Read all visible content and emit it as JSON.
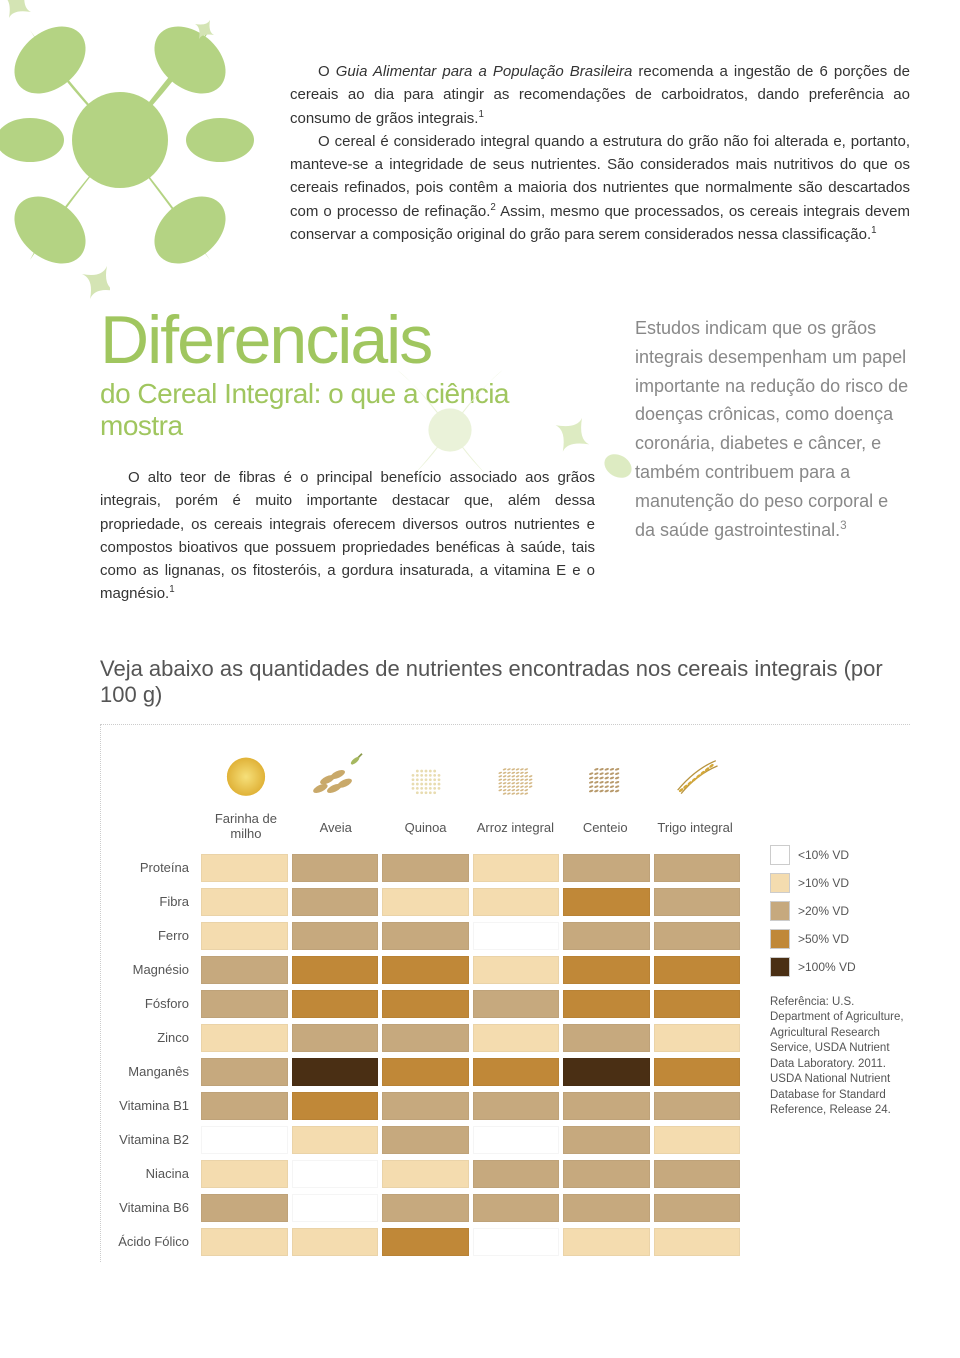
{
  "intro": {
    "para1_prefix": "O ",
    "para1_italic": "Guia Alimentar para a População Brasileira",
    "para1_rest": " recomenda a ingestão de 6 porções de cereais ao dia para atingir as recomendações de carboidratos, dando preferência ao consumo de grãos integrais.",
    "para1_sup": "1",
    "para2": "O cereal é considerado integral quando a estrutura do grão não foi alterada e, portanto, manteve-se a integridade de seus nutrientes. São considerados mais nutritivos do que os cereais refinados, pois contêm a maioria dos nutrientes que normalmente são descartados com o processo de refinação.",
    "para2_sup": "2",
    "para2_rest": " Assim, mesmo que processados, os cereais integrais devem conservar a composição original do grão para serem considerados nessa classificação.",
    "para2_sup2": "1"
  },
  "diff": {
    "h1": "Diferenciais",
    "h2": "do Cereal Integral: o que a ciência mostra",
    "body": "O alto teor de fibras é o principal benefício associado aos grãos integrais, porém é muito importante destacar que, além dessa propriedade, os cereais integrais oferecem diversos outros nutrientes e compostos bioativos que possuem propriedades benéficas à saúde, tais como as lignanas, os fitosteróis, a gordura insaturada, a vitamina E e o magnésio.",
    "body_sup": "1",
    "aside": "Estudos indicam que os grãos integrais desempenham um papel importante na redução do risco de doenças crônicas, como doença coronária, diabetes e câncer, e também contribuem para a manutenção do peso corporal e da saúde gastrointestinal.",
    "aside_sup": "3"
  },
  "table": {
    "title": "Veja abaixo as quantidades de nutrientes encontradas nos cereais integrais (por 100 g)",
    "columns": [
      "Farinha de milho",
      "Aveia",
      "Quinoa",
      "Arroz integral",
      "Centeio",
      "Trigo integral"
    ],
    "rows": [
      {
        "label": "Proteína",
        "cells": [
          1,
          2,
          2,
          1,
          2,
          2
        ]
      },
      {
        "label": "Fibra",
        "cells": [
          1,
          2,
          1,
          1,
          3,
          2
        ]
      },
      {
        "label": "Ferro",
        "cells": [
          1,
          2,
          2,
          0,
          2,
          2
        ]
      },
      {
        "label": "Magnésio",
        "cells": [
          2,
          3,
          3,
          1,
          3,
          3
        ]
      },
      {
        "label": "Fósforo",
        "cells": [
          2,
          3,
          3,
          2,
          3,
          3
        ]
      },
      {
        "label": "Zinco",
        "cells": [
          1,
          2,
          2,
          1,
          2,
          1
        ]
      },
      {
        "label": "Manganês",
        "cells": [
          2,
          4,
          3,
          3,
          4,
          3
        ]
      },
      {
        "label": "Vitamina B1",
        "cells": [
          2,
          3,
          2,
          2,
          2,
          2
        ]
      },
      {
        "label": "Vitamina B2",
        "cells": [
          0,
          1,
          2,
          0,
          2,
          1
        ]
      },
      {
        "label": "Niacina",
        "cells": [
          1,
          0,
          1,
          2,
          2,
          2
        ]
      },
      {
        "label": "Vitamina B6",
        "cells": [
          2,
          0,
          2,
          2,
          2,
          2
        ]
      },
      {
        "label": "Ácido Fólico",
        "cells": [
          1,
          1,
          3,
          0,
          1,
          1
        ]
      }
    ],
    "scale_colors": [
      "#ffffff",
      "#f4dcaf",
      "#c6a97e",
      "#c08838",
      "#4a2f14"
    ],
    "legend_labels": [
      "<10% VD",
      ">10% VD",
      ">20% VD",
      ">50% VD",
      ">100% VD"
    ],
    "reference": "Referência: U.S. Department of Agriculture, Agricultural Research Service, USDA Nutrient Data Laboratory. 2011. USDA National Nutrient Database for Standard Reference, Release 24."
  },
  "colors": {
    "accent": "#a0c65f",
    "aside_text": "#888888"
  }
}
